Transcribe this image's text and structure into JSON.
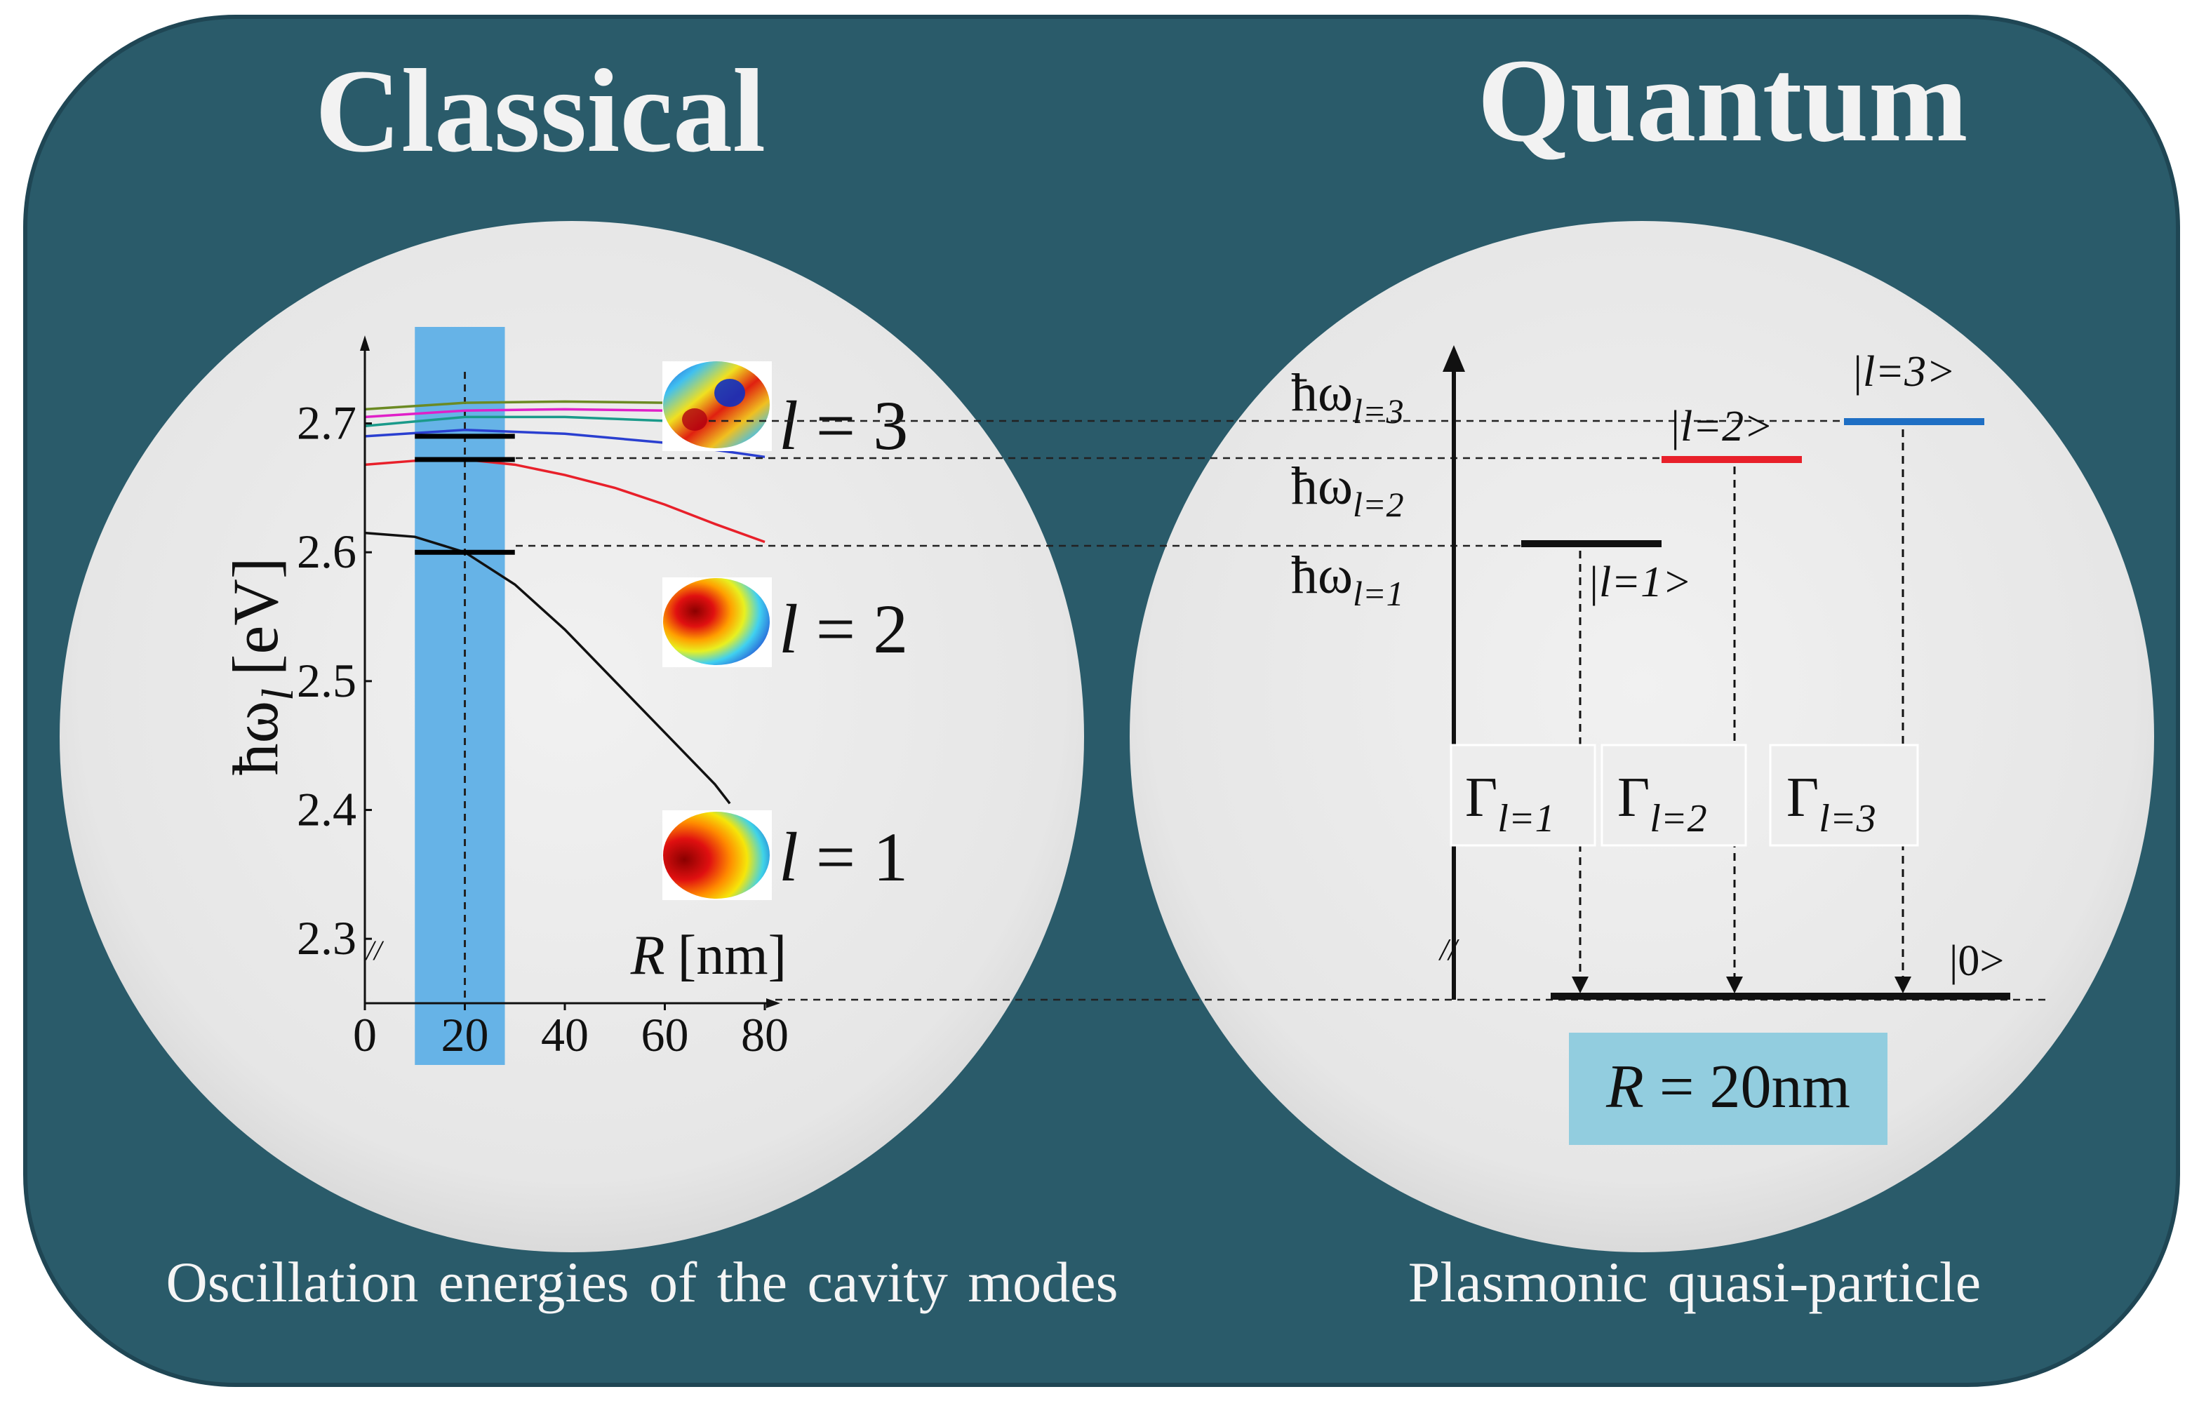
{
  "classical": {
    "title": "Classical",
    "caption": "Oscillation energies of the cavity modes",
    "y_axis_label": "ħω",
    "y_axis_sub": "l",
    "y_axis_unit": "[eV]",
    "x_axis_var": "R",
    "x_axis_unit": "[nm]",
    "mode_labels": [
      {
        "var": "l",
        "text": " = 3"
      },
      {
        "var": "l",
        "text": " = 2"
      },
      {
        "var": "l",
        "text": " = 1"
      }
    ]
  },
  "quantum": {
    "title": "Quantum",
    "caption": "Plasmonic quasi-particle",
    "energy_labels": [
      {
        "main": "ħω",
        "sub": "l=3"
      },
      {
        "main": "ħω",
        "sub": "l=2"
      },
      {
        "main": "ħω",
        "sub": "l=1"
      }
    ],
    "state_labels": [
      "|l=3>",
      "|l=2>",
      "|l=1>",
      "|0>"
    ],
    "gamma_labels": [
      {
        "main": "Γ",
        "sub": "l=1"
      },
      {
        "main": "Γ",
        "sub": "l=2"
      },
      {
        "main": "Γ",
        "sub": "l=3"
      }
    ],
    "radius_box": {
      "var": "R",
      "text": " = 20nm"
    },
    "colors": {
      "l1": "#111111",
      "l2": "#e8202a",
      "l3": "#1f6fc4"
    }
  },
  "chart_data": {
    "type": "line",
    "xlabel": "R [nm]",
    "ylabel": "ħω_l [eV]",
    "xlim": [
      0,
      80
    ],
    "ylim": [
      2.25,
      2.77
    ],
    "x_ticks": [
      "0",
      "20",
      "40",
      "60",
      "80"
    ],
    "y_ticks": [
      "2.3",
      "2.4",
      "2.5",
      "2.6",
      "2.7"
    ],
    "x_tick_values": [
      0,
      20,
      40,
      60,
      80
    ],
    "y_tick_values": [
      2.3,
      2.4,
      2.5,
      2.6,
      2.7
    ],
    "highlight_band_x": [
      10,
      28
    ],
    "marker_x": 20,
    "series": [
      {
        "color": "#111111",
        "x": [
          0,
          10,
          20,
          30,
          40,
          50,
          60,
          70,
          73
        ],
        "y": [
          2.615,
          2.612,
          2.6,
          2.575,
          2.54,
          2.5,
          2.46,
          2.42,
          2.405
        ]
      },
      {
        "color": "#e8202a",
        "x": [
          0,
          10,
          20,
          30,
          40,
          50,
          60,
          70,
          80
        ],
        "y": [
          2.668,
          2.671,
          2.672,
          2.668,
          2.66,
          2.65,
          2.637,
          2.622,
          2.608
        ]
      },
      {
        "color": "#2a3fd0",
        "x": [
          0,
          20,
          40,
          60,
          80
        ],
        "y": [
          2.69,
          2.695,
          2.692,
          2.685,
          2.674
        ]
      },
      {
        "color": "#1a9a8a",
        "x": [
          0,
          20,
          40,
          60,
          80
        ],
        "y": [
          2.698,
          2.705,
          2.705,
          2.702,
          2.697
        ]
      },
      {
        "color": "#e020c8",
        "x": [
          0,
          20,
          40,
          60,
          80
        ],
        "y": [
          2.705,
          2.71,
          2.711,
          2.71,
          2.708
        ]
      },
      {
        "color": "#6b8a23",
        "x": [
          0,
          20,
          40,
          60,
          80
        ],
        "y": [
          2.711,
          2.716,
          2.717,
          2.716,
          2.714
        ]
      }
    ],
    "mode_levels_at_R20": [
      2.6,
      2.672,
      2.69
    ]
  }
}
